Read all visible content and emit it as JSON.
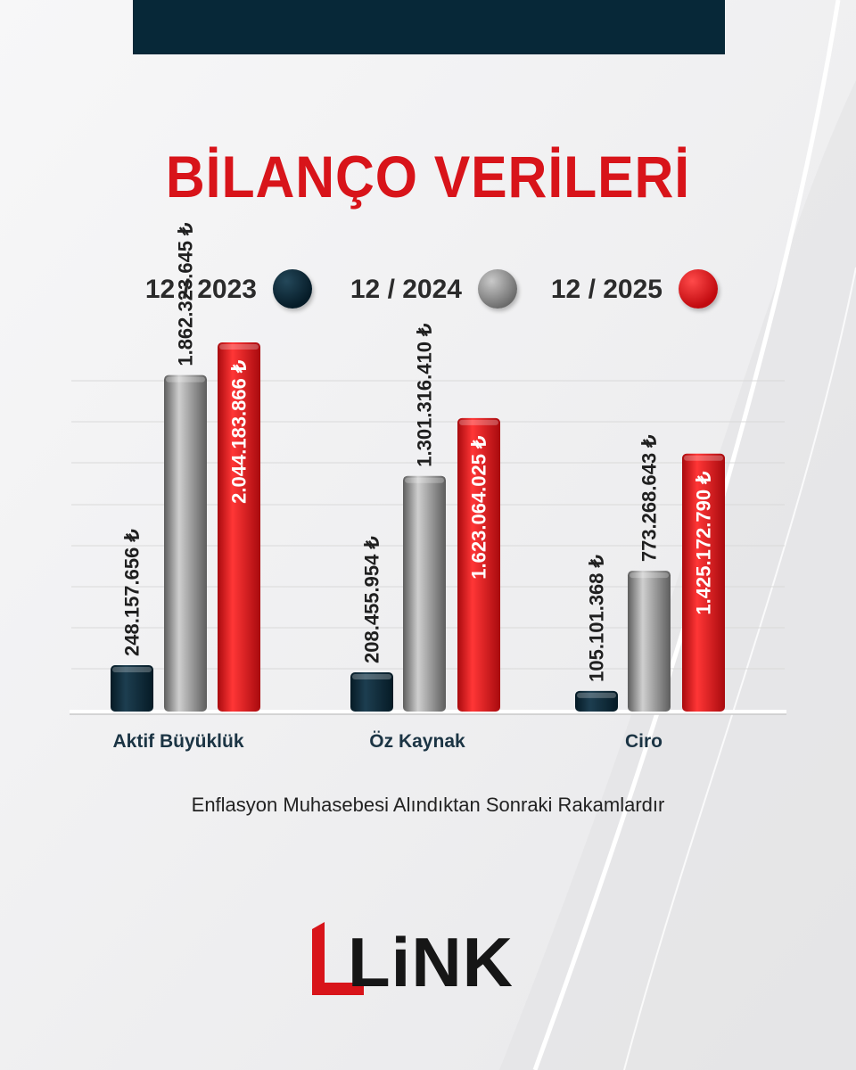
{
  "title": "BİLANÇO VERİLERİ",
  "footnote": "Enflasyon Muhasebesi Alındıktan Sonraki Rakamlardır",
  "logo": {
    "text": "LiNK"
  },
  "colors": {
    "title": "#d8141a",
    "dark": "#0a2a3a",
    "gray": "#8c8c8c",
    "red": "#d10f14",
    "topbar": "#072838"
  },
  "chart_data": {
    "type": "bar",
    "title": "BİLANÇO VERİLERİ",
    "xlabel": "",
    "ylabel": "",
    "grid": true,
    "legend_position": "top",
    "categories": [
      "Aktif Büyüklük",
      "Öz Kaynak",
      "Ciro"
    ],
    "series": [
      {
        "name": "12 / 2023",
        "color": "#0a2a3a",
        "values": [
          248157656,
          208455954,
          105101368
        ],
        "labels": [
          "248.157.656 ₺",
          "208.455.954 ₺",
          "105.101.368 ₺"
        ]
      },
      {
        "name": "12 / 2024",
        "color": "#8c8c8c",
        "values": [
          1862323645,
          1301316410,
          773268643
        ],
        "labels": [
          "1.862.323.645 ₺",
          "1.301.316.410 ₺",
          "773.268.643 ₺"
        ]
      },
      {
        "name": "12 / 2025",
        "color": "#d10f14",
        "values": [
          2044183866,
          1623064025,
          1425172790
        ],
        "labels": [
          "2.044.183.866 ₺",
          "1.623.064.025 ₺",
          "1.425.172.790 ₺"
        ]
      }
    ]
  }
}
